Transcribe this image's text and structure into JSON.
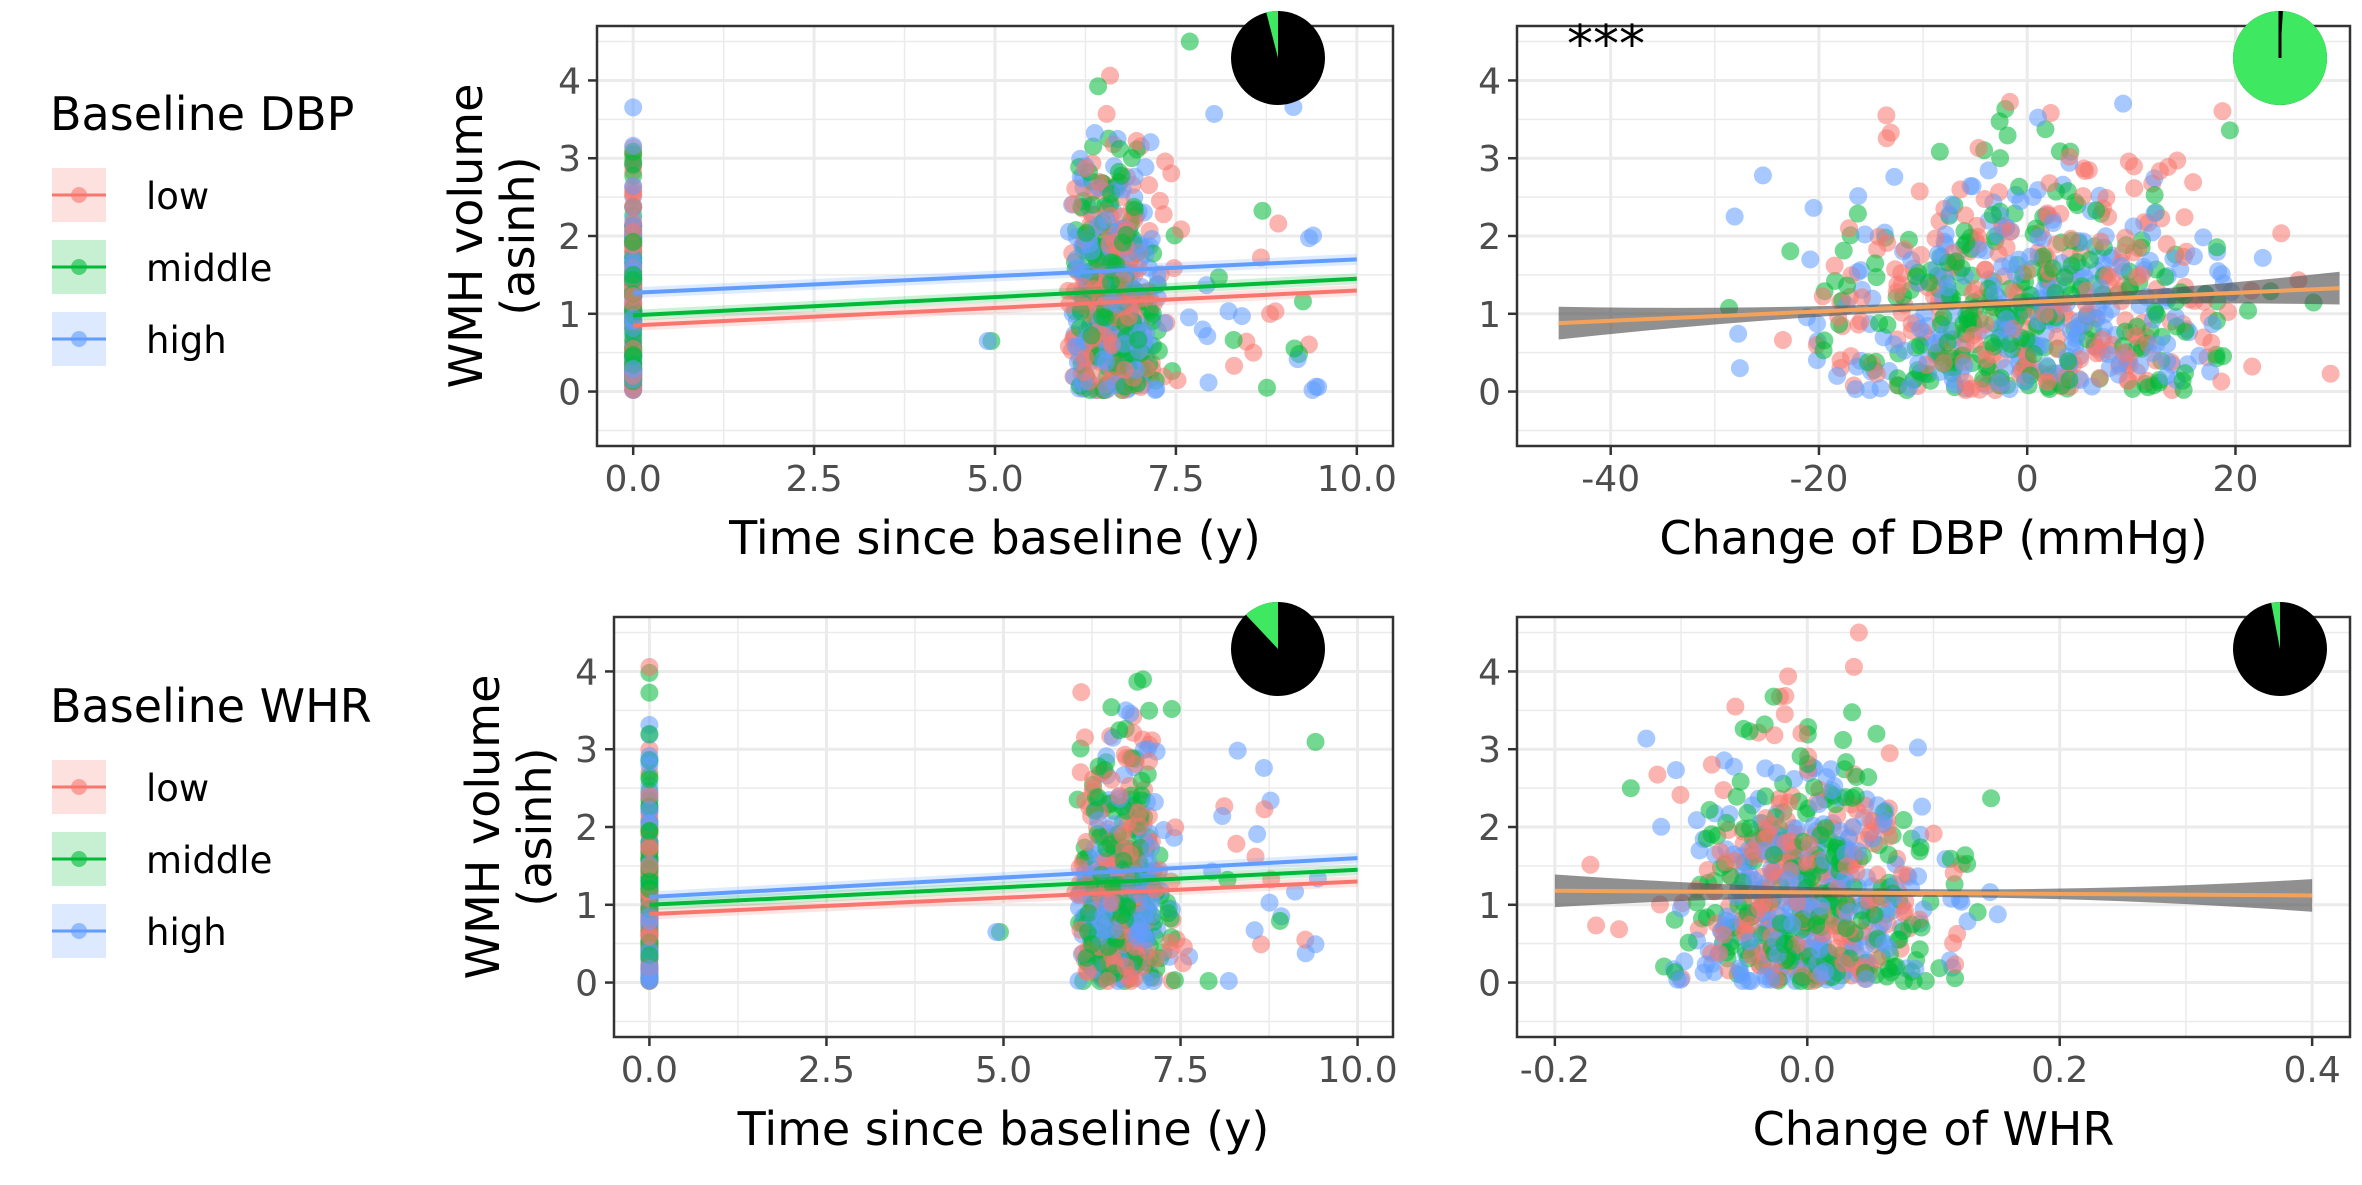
{
  "legends": [
    {
      "title": "Baseline DBP",
      "items": [
        "low",
        "middle",
        "high"
      ]
    },
    {
      "title": "Baseline WHR",
      "items": [
        "low",
        "middle",
        "high"
      ]
    }
  ],
  "colors": {
    "low": "#F8766D",
    "middle": "#00BA38",
    "high": "#619CFF",
    "overall_line": "#F4A259",
    "overall_band": "#555555",
    "pie_main": "#000000",
    "pie_slice": "#3EE860",
    "grid": "#EBEBEB",
    "axis_text": "#4D4D4D"
  },
  "chart_data": [
    {
      "type": "scatter",
      "panel": "top-left",
      "xlabel": "Time since baseline (y)",
      "ylabel": [
        "WMH volume",
        "(asinh)"
      ],
      "xlim": [
        -0.5,
        10.5
      ],
      "ylim": [
        -0.7,
        4.7
      ],
      "xticks": [
        0,
        2.5,
        5,
        7.5,
        10
      ],
      "xtick_labels": [
        "0.0",
        "2.5",
        "5.0",
        "7.5",
        "10.0"
      ],
      "yticks": [
        0,
        1,
        2,
        3,
        4
      ],
      "ytick_labels": [
        "0",
        "1",
        "2",
        "3",
        "4"
      ],
      "grid": true,
      "points": {
        "baseline_x": 0,
        "followup_x_range": [
          6.0,
          7.3
        ],
        "outlier_max_x": 9.5,
        "y_range": [
          0.0,
          4.5
        ]
      },
      "fits": [
        {
          "group": "low",
          "x": [
            0,
            10
          ],
          "y": [
            0.85,
            1.3
          ]
        },
        {
          "group": "middle",
          "x": [
            0,
            10
          ],
          "y": [
            0.98,
            1.45
          ]
        },
        {
          "group": "high",
          "x": [
            0,
            10
          ],
          "y": [
            1.27,
            1.7
          ]
        }
      ],
      "pie": {
        "fraction": 0.04
      },
      "annotation": ""
    },
    {
      "type": "scatter",
      "panel": "top-right",
      "xlabel": "Change of DBP (mmHg)",
      "ylabel": [],
      "xlim": [
        -49,
        31
      ],
      "ylim": [
        -0.7,
        4.7
      ],
      "xticks": [
        -40,
        -20,
        0,
        20
      ],
      "xtick_labels": [
        "-40",
        "-20",
        "0",
        "20"
      ],
      "yticks": [
        0,
        1,
        2,
        3,
        4
      ],
      "ytick_labels": [
        "0",
        "1",
        "2",
        "3",
        "4"
      ],
      "grid": true,
      "points": {
        "x_center": 0,
        "x_spread": 10,
        "y_range": [
          0.0,
          4.5
        ]
      },
      "fits": [
        {
          "group": "overall",
          "x": [
            -45,
            30
          ],
          "y": [
            0.88,
            1.33
          ]
        }
      ],
      "pie": {
        "fraction": 0.99
      },
      "annotation": "***"
    },
    {
      "type": "scatter",
      "panel": "bottom-left",
      "xlabel": "Time since baseline (y)",
      "ylabel": [
        "WMH volume",
        "(asinh)"
      ],
      "xlim": [
        -0.5,
        10.5
      ],
      "ylim": [
        -0.7,
        4.7
      ],
      "xticks": [
        0,
        2.5,
        5,
        7.5,
        10
      ],
      "xtick_labels": [
        "0.0",
        "2.5",
        "5.0",
        "7.5",
        "10.0"
      ],
      "yticks": [
        0,
        1,
        2,
        3,
        4
      ],
      "ytick_labels": [
        "0",
        "1",
        "2",
        "3",
        "4"
      ],
      "grid": true,
      "points": {
        "baseline_x": 0,
        "followup_x_range": [
          6.0,
          7.3
        ],
        "outlier_max_x": 9.5,
        "y_range": [
          0.0,
          4.5
        ]
      },
      "fits": [
        {
          "group": "low",
          "x": [
            0,
            10
          ],
          "y": [
            0.88,
            1.3
          ]
        },
        {
          "group": "middle",
          "x": [
            0,
            10
          ],
          "y": [
            1.0,
            1.45
          ]
        },
        {
          "group": "high",
          "x": [
            0,
            10
          ],
          "y": [
            1.1,
            1.6
          ]
        }
      ],
      "pie": {
        "fraction": 0.12
      },
      "annotation": ""
    },
    {
      "type": "scatter",
      "panel": "bottom-right",
      "xlabel": "Change of WHR",
      "ylabel": [],
      "xlim": [
        -0.23,
        0.43
      ],
      "ylim": [
        -0.7,
        4.7
      ],
      "xticks": [
        -0.2,
        0,
        0.2,
        0.4
      ],
      "xtick_labels": [
        "-0.2",
        "0.0",
        "0.2",
        "0.4"
      ],
      "yticks": [
        0,
        1,
        2,
        3,
        4
      ],
      "ytick_labels": [
        "0",
        "1",
        "2",
        "3",
        "4"
      ],
      "grid": true,
      "points": {
        "x_center": 0,
        "x_spread": 0.05,
        "y_range": [
          0.0,
          4.5
        ]
      },
      "fits": [
        {
          "group": "overall",
          "x": [
            -0.2,
            0.4
          ],
          "y": [
            1.18,
            1.12
          ]
        }
      ],
      "pie": {
        "fraction": 0.03
      },
      "annotation": ""
    }
  ]
}
